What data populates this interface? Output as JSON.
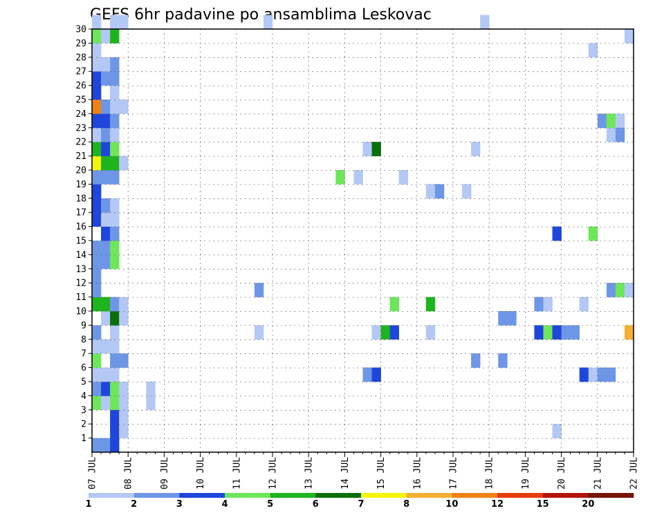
{
  "chart_data": {
    "type": "heatmap",
    "title": "GEFS 6hr padavine po ansamblima Leskovac",
    "x_tick_labels": [
      "07 JUL",
      "08 JUL",
      "09 JUL",
      "10 JUL",
      "11 JUL",
      "12 JUL",
      "13 JUL",
      "14 JUL",
      "15 JUL",
      "16 JUL",
      "17 JUL",
      "18 JUL",
      "19 JUL",
      "20 JUL",
      "21 JUL",
      "22 JUL"
    ],
    "y_tick_labels": [
      "1",
      "2",
      "3",
      "4",
      "5",
      "6",
      "7",
      "8",
      "9",
      "10",
      "11",
      "12",
      "13",
      "14",
      "15",
      "16",
      "17",
      "18",
      "19",
      "20",
      "21",
      "22",
      "23",
      "24",
      "25",
      "26",
      "27",
      "28",
      "29",
      "30"
    ],
    "xlim": [
      0,
      60
    ],
    "ylim": [
      0,
      30
    ],
    "grid": true,
    "colorbar": {
      "labels": [
        "1",
        "2",
        "3",
        "4",
        "5",
        "6",
        "7",
        "8",
        "10",
        "12",
        "15",
        "20"
      ],
      "colors": [
        "#b4c8f5",
        "#6e96e6",
        "#1e46dc",
        "#6ee65a",
        "#1eb41e",
        "#0a6e0a",
        "#f5f50a",
        "#f5af32",
        "#f08214",
        "#e63c0a",
        "#b4140a",
        "#781405"
      ]
    },
    "cells": [
      {
        "m": 0,
        "t": 0,
        "c": 2
      },
      {
        "m": 0,
        "t": 1,
        "c": 2
      },
      {
        "m": 0,
        "t": 2,
        "c": 3
      },
      {
        "m": 1,
        "t": 2,
        "c": 3
      },
      {
        "m": 1,
        "t": 3,
        "c": 1
      },
      {
        "m": 2,
        "t": 2,
        "c": 3
      },
      {
        "m": 2,
        "t": 3,
        "c": 1
      },
      {
        "m": 3,
        "t": 0,
        "c": 4
      },
      {
        "m": 3,
        "t": 1,
        "c": 1
      },
      {
        "m": 3,
        "t": 2,
        "c": 4
      },
      {
        "m": 3,
        "t": 3,
        "c": 1
      },
      {
        "m": 4,
        "t": 0,
        "c": 2
      },
      {
        "m": 4,
        "t": 1,
        "c": 3
      },
      {
        "m": 4,
        "t": 2,
        "c": 4
      },
      {
        "m": 4,
        "t": 3,
        "c": 1
      },
      {
        "m": 4,
        "t": 6,
        "c": 1
      },
      {
        "m": 5,
        "t": 0,
        "c": 1
      },
      {
        "m": 5,
        "t": 1,
        "c": 1
      },
      {
        "m": 5,
        "t": 2,
        "c": 1
      },
      {
        "m": 6,
        "t": 0,
        "c": 4
      },
      {
        "m": 6,
        "t": 2,
        "c": 2
      },
      {
        "m": 6,
        "t": 3,
        "c": 2
      },
      {
        "m": 7,
        "t": 0,
        "c": 1
      },
      {
        "m": 7,
        "t": 1,
        "c": 1
      },
      {
        "m": 7,
        "t": 2,
        "c": 1
      },
      {
        "m": 8,
        "t": 0,
        "c": 2
      },
      {
        "m": 8,
        "t": 2,
        "c": 1
      },
      {
        "m": 9,
        "t": 1,
        "c": 1
      },
      {
        "m": 9,
        "t": 2,
        "c": 6
      },
      {
        "m": 9,
        "t": 3,
        "c": 1
      },
      {
        "m": 10,
        "t": 0,
        "c": 5
      },
      {
        "m": 10,
        "t": 1,
        "c": 5
      },
      {
        "m": 10,
        "t": 2,
        "c": 2
      },
      {
        "m": 10,
        "t": 3,
        "c": 1
      },
      {
        "m": 11,
        "t": 0,
        "c": 2
      },
      {
        "m": 12,
        "t": 0,
        "c": 2
      },
      {
        "m": 13,
        "t": 0,
        "c": 2
      },
      {
        "m": 13,
        "t": 1,
        "c": 2
      },
      {
        "m": 13,
        "t": 2,
        "c": 4
      },
      {
        "m": 14,
        "t": 0,
        "c": 2
      },
      {
        "m": 14,
        "t": 1,
        "c": 2
      },
      {
        "m": 14,
        "t": 2,
        "c": 4
      },
      {
        "m": 15,
        "t": 1,
        "c": 3
      },
      {
        "m": 15,
        "t": 2,
        "c": 2
      },
      {
        "m": 16,
        "t": 0,
        "c": 3
      },
      {
        "m": 16,
        "t": 1,
        "c": 1
      },
      {
        "m": 16,
        "t": 2,
        "c": 1
      },
      {
        "m": 17,
        "t": 0,
        "c": 3
      },
      {
        "m": 17,
        "t": 1,
        "c": 2
      },
      {
        "m": 17,
        "t": 2,
        "c": 1
      },
      {
        "m": 18,
        "t": 0,
        "c": 3
      },
      {
        "m": 19,
        "t": 0,
        "c": 2
      },
      {
        "m": 19,
        "t": 1,
        "c": 2
      },
      {
        "m": 19,
        "t": 2,
        "c": 2
      },
      {
        "m": 20,
        "t": 0,
        "c": 7
      },
      {
        "m": 20,
        "t": 1,
        "c": 5
      },
      {
        "m": 20,
        "t": 2,
        "c": 5
      },
      {
        "m": 20,
        "t": 3,
        "c": 1
      },
      {
        "m": 21,
        "t": 0,
        "c": 5
      },
      {
        "m": 21,
        "t": 1,
        "c": 3
      },
      {
        "m": 21,
        "t": 2,
        "c": 4
      },
      {
        "m": 22,
        "t": 0,
        "c": 1
      },
      {
        "m": 22,
        "t": 1,
        "c": 2
      },
      {
        "m": 22,
        "t": 2,
        "c": 1
      },
      {
        "m": 23,
        "t": 0,
        "c": 3
      },
      {
        "m": 23,
        "t": 1,
        "c": 3
      },
      {
        "m": 23,
        "t": 2,
        "c": 2
      },
      {
        "m": 24,
        "t": 0,
        "c": 9
      },
      {
        "m": 24,
        "t": 1,
        "c": 2
      },
      {
        "m": 24,
        "t": 2,
        "c": 1
      },
      {
        "m": 24,
        "t": 3,
        "c": 1
      },
      {
        "m": 25,
        "t": 0,
        "c": 3
      },
      {
        "m": 25,
        "t": 2,
        "c": 1
      },
      {
        "m": 26,
        "t": 0,
        "c": 3
      },
      {
        "m": 26,
        "t": 1,
        "c": 2
      },
      {
        "m": 26,
        "t": 2,
        "c": 2
      },
      {
        "m": 27,
        "t": 0,
        "c": 1
      },
      {
        "m": 27,
        "t": 1,
        "c": 1
      },
      {
        "m": 27,
        "t": 2,
        "c": 2
      },
      {
        "m": 28,
        "t": 0,
        "c": 1
      },
      {
        "m": 29,
        "t": 0,
        "c": 4
      },
      {
        "m": 29,
        "t": 1,
        "c": 1
      },
      {
        "m": 29,
        "t": 2,
        "c": 5
      },
      {
        "m": 30,
        "t": 0,
        "c": 1
      },
      {
        "m": 30,
        "t": 2,
        "c": 1
      },
      {
        "m": 30,
        "t": 3,
        "c": 1
      },
      {
        "m": 3,
        "t": 6,
        "c": 1
      },
      {
        "m": 11,
        "t": 18,
        "c": 2
      },
      {
        "m": 8,
        "t": 18,
        "c": 1
      },
      {
        "m": 30,
        "t": 19,
        "c": 1
      },
      {
        "m": 19,
        "t": 27,
        "c": 4
      },
      {
        "m": 19,
        "t": 29,
        "c": 1
      },
      {
        "m": 5,
        "t": 30,
        "c": 2
      },
      {
        "m": 5,
        "t": 31,
        "c": 3
      },
      {
        "m": 21,
        "t": 30,
        "c": 1
      },
      {
        "m": 21,
        "t": 31,
        "c": 6
      },
      {
        "m": 8,
        "t": 31,
        "c": 1
      },
      {
        "m": 8,
        "t": 32,
        "c": 5
      },
      {
        "m": 8,
        "t": 33,
        "c": 3
      },
      {
        "m": 10,
        "t": 33,
        "c": 4
      },
      {
        "m": 19,
        "t": 34,
        "c": 1
      },
      {
        "m": 8,
        "t": 37,
        "c": 1
      },
      {
        "m": 10,
        "t": 37,
        "c": 5
      },
      {
        "m": 18,
        "t": 37,
        "c": 1
      },
      {
        "m": 18,
        "t": 38,
        "c": 2
      },
      {
        "m": 18,
        "t": 41,
        "c": 1
      },
      {
        "m": 6,
        "t": 42,
        "c": 2
      },
      {
        "m": 21,
        "t": 42,
        "c": 1
      },
      {
        "m": 30,
        "t": 43,
        "c": 1
      },
      {
        "m": 9,
        "t": 45,
        "c": 2
      },
      {
        "m": 9,
        "t": 46,
        "c": 2
      },
      {
        "m": 6,
        "t": 45,
        "c": 2
      },
      {
        "m": 8,
        "t": 49,
        "c": 3
      },
      {
        "m": 8,
        "t": 50,
        "c": 4
      },
      {
        "m": 8,
        "t": 51,
        "c": 3
      },
      {
        "m": 8,
        "t": 52,
        "c": 2
      },
      {
        "m": 8,
        "t": 53,
        "c": 2
      },
      {
        "m": 10,
        "t": 49,
        "c": 2
      },
      {
        "m": 10,
        "t": 50,
        "c": 1
      },
      {
        "m": 15,
        "t": 51,
        "c": 3
      },
      {
        "m": 1,
        "t": 51,
        "c": 1
      },
      {
        "m": 10,
        "t": 54,
        "c": 1
      },
      {
        "m": 5,
        "t": 54,
        "c": 3
      },
      {
        "m": 5,
        "t": 55,
        "c": 1
      },
      {
        "m": 5,
        "t": 56,
        "c": 2
      },
      {
        "m": 5,
        "t": 57,
        "c": 2
      },
      {
        "m": 15,
        "t": 55,
        "c": 4
      },
      {
        "m": 28,
        "t": 55,
        "c": 1
      },
      {
        "m": 23,
        "t": 56,
        "c": 2
      },
      {
        "m": 23,
        "t": 57,
        "c": 4
      },
      {
        "m": 23,
        "t": 58,
        "c": 1
      },
      {
        "m": 22,
        "t": 57,
        "c": 1
      },
      {
        "m": 22,
        "t": 58,
        "c": 2
      },
      {
        "m": 11,
        "t": 57,
        "c": 2
      },
      {
        "m": 11,
        "t": 58,
        "c": 4
      },
      {
        "m": 11,
        "t": 59,
        "c": 1
      },
      {
        "m": 29,
        "t": 59,
        "c": 1
      },
      {
        "m": 8,
        "t": 59,
        "c": 8
      }
    ]
  }
}
